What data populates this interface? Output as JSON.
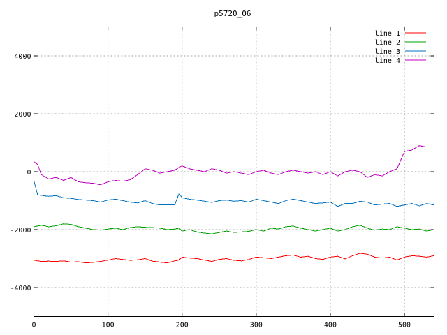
{
  "chart_data": {
    "type": "line",
    "title": "p5720_06",
    "xlabel": "",
    "ylabel": "",
    "xlim": [
      0,
      540
    ],
    "ylim": [
      -5000,
      5000
    ],
    "xticks": [
      0,
      100,
      200,
      300,
      400,
      500
    ],
    "yticks": [
      -4000,
      -2000,
      0,
      2000,
      4000
    ],
    "grid": true,
    "legend_position": "top-right",
    "x": [
      0,
      5,
      10,
      20,
      30,
      40,
      50,
      60,
      70,
      80,
      90,
      100,
      110,
      120,
      130,
      140,
      150,
      160,
      170,
      180,
      190,
      196,
      200,
      210,
      220,
      230,
      240,
      250,
      260,
      270,
      280,
      290,
      300,
      310,
      320,
      330,
      340,
      350,
      360,
      370,
      380,
      390,
      400,
      410,
      420,
      430,
      440,
      450,
      460,
      470,
      480,
      490,
      500,
      510,
      520,
      530,
      540
    ],
    "series": [
      {
        "name": "line 1",
        "color": "#ff0000",
        "values": [
          -3050,
          -3080,
          -3100,
          -3090,
          -3100,
          -3080,
          -3120,
          -3110,
          -3150,
          -3130,
          -3100,
          -3050,
          -3000,
          -3030,
          -3060,
          -3040,
          -3000,
          -3090,
          -3120,
          -3150,
          -3080,
          -3050,
          -2950,
          -2980,
          -3000,
          -3050,
          -3100,
          -3030,
          -3000,
          -3060,
          -3080,
          -3030,
          -2950,
          -2970,
          -3000,
          -2950,
          -2900,
          -2880,
          -2950,
          -2920,
          -3000,
          -3030,
          -2950,
          -2920,
          -3010,
          -2900,
          -2820,
          -2850,
          -2950,
          -2980,
          -2950,
          -3050,
          -2950,
          -2900,
          -2920,
          -2950,
          -2900
        ]
      },
      {
        "name": "line 2",
        "color": "#00a000",
        "values": [
          -1900,
          -1880,
          -1850,
          -1900,
          -1870,
          -1800,
          -1820,
          -1900,
          -1950,
          -2000,
          -2020,
          -1980,
          -1950,
          -2000,
          -1930,
          -1900,
          -1920,
          -1930,
          -1950,
          -2000,
          -1980,
          -1950,
          -2050,
          -2000,
          -2080,
          -2120,
          -2150,
          -2100,
          -2050,
          -2100,
          -2080,
          -2060,
          -2000,
          -2050,
          -1950,
          -1980,
          -1900,
          -1880,
          -1950,
          -2000,
          -2050,
          -2000,
          -1950,
          -2050,
          -2000,
          -1900,
          -1850,
          -1950,
          -2020,
          -1980,
          -2000,
          -1900,
          -1950,
          -2000,
          -1980,
          -2050,
          -2000
        ]
      },
      {
        "name": "line 3",
        "color": "#0070c0",
        "values": [
          -300,
          -800,
          -820,
          -850,
          -830,
          -900,
          -920,
          -960,
          -980,
          -1000,
          -1050,
          -980,
          -950,
          -1000,
          -1050,
          -1080,
          -1000,
          -1100,
          -1150,
          -1150,
          -1150,
          -750,
          -900,
          -950,
          -980,
          -1020,
          -1060,
          -1000,
          -980,
          -1020,
          -1000,
          -1050,
          -950,
          -1000,
          -1050,
          -1100,
          -1000,
          -950,
          -1000,
          -1050,
          -1100,
          -1080,
          -1050,
          -1200,
          -1100,
          -1100,
          -1020,
          -1050,
          -1150,
          -1120,
          -1100,
          -1200,
          -1150,
          -1100,
          -1180,
          -1100,
          -1150
        ]
      },
      {
        "name": "line 4",
        "color": "#c000c0",
        "values": [
          350,
          250,
          -100,
          -250,
          -200,
          -300,
          -200,
          -350,
          -380,
          -400,
          -450,
          -350,
          -300,
          -330,
          -280,
          -100,
          100,
          50,
          -50,
          0,
          50,
          150,
          200,
          100,
          50,
          0,
          100,
          50,
          -50,
          0,
          -50,
          -100,
          0,
          50,
          -50,
          -100,
          0,
          50,
          0,
          -50,
          0,
          -100,
          0,
          -150,
          0,
          50,
          0,
          -200,
          -100,
          -150,
          0,
          100,
          700,
          750,
          900,
          850,
          850
        ]
      }
    ]
  }
}
